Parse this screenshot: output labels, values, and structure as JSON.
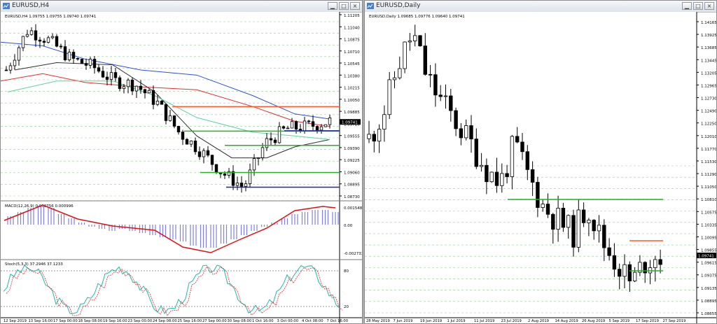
{
  "windows": {
    "h4": {
      "title": "EURUSD,H4",
      "ohlc_label": "EURUSD,H4  1.09755 1.09755 1.09740 1.09741",
      "price_axis": [
        "1.11205",
        "1.11040",
        "1.10875",
        "1.10710",
        "1.10545",
        "1.10380",
        "1.10215",
        "1.10050",
        "1.09885",
        "1.09720",
        "1.09555",
        "1.09390",
        "1.09225",
        "1.09060",
        "1.08895",
        "1.08730"
      ],
      "current_price": "1.09741",
      "time_axis": [
        "12 Sep 2019",
        "13 Sep 16:00",
        "17 Sep 00:00",
        "18 Sep 08:00",
        "19 Sep 16:00",
        "23 Sep 00:00",
        "24 Sep 08:00",
        "25 Sep 16:00",
        "27 Sep 00:00",
        "30 Sep 08:00",
        "1 Oct 16:00",
        "3 Oct 00:00",
        "4 Oct 08:00",
        "7 Oct 16:00"
      ],
      "macd": {
        "label": "MACD(12,26,9) 0.000756 0.000996",
        "top": "0.001548",
        "zero": "0.00",
        "bottom": "-0.002733"
      },
      "stoch": {
        "label": "Stoch(5,3,3) 37.2946 37.1233",
        "levels": [
          "80",
          "20"
        ]
      }
    },
    "daily": {
      "title": "EURUSD,Daily",
      "ohlc_label": "EURUSD,Daily  1.09685 1.09776 1.09640 1.09741",
      "price_axis": [
        "1.14165",
        "1.13925",
        "1.13685",
        "1.13445",
        "1.13205",
        "1.12965",
        "1.12730",
        "1.12490",
        "1.12250",
        "1.12010",
        "1.11770",
        "1.11530",
        "1.11290",
        "1.11050",
        "1.10810",
        "1.10575",
        "1.10335",
        "1.10095",
        "1.09855",
        "1.09615",
        "1.09375",
        "1.09135",
        "1.08895",
        "1.08655"
      ],
      "current_price": "1.09741",
      "time_axis": [
        "28 May 2019",
        "7 Jun 2019",
        "19 Jun 2019",
        "1 Jul 2019",
        "11 Jul 2019",
        "23 Jul 2019",
        "2 Aug 2019",
        "14 Aug 2019",
        "26 Aug 2019",
        "5 Sep 2019",
        "17 Sep 2019",
        "27 Sep 2019"
      ]
    }
  },
  "colors": {
    "bull": "#ffffff",
    "bear": "#000000",
    "support": "#22b222",
    "resistance": "#ff5a28",
    "low_line": "#1e2a9a",
    "ma_blue": "#3050d8",
    "ma_red": "#e03030",
    "macd_hist": "#8080e0"
  }
}
